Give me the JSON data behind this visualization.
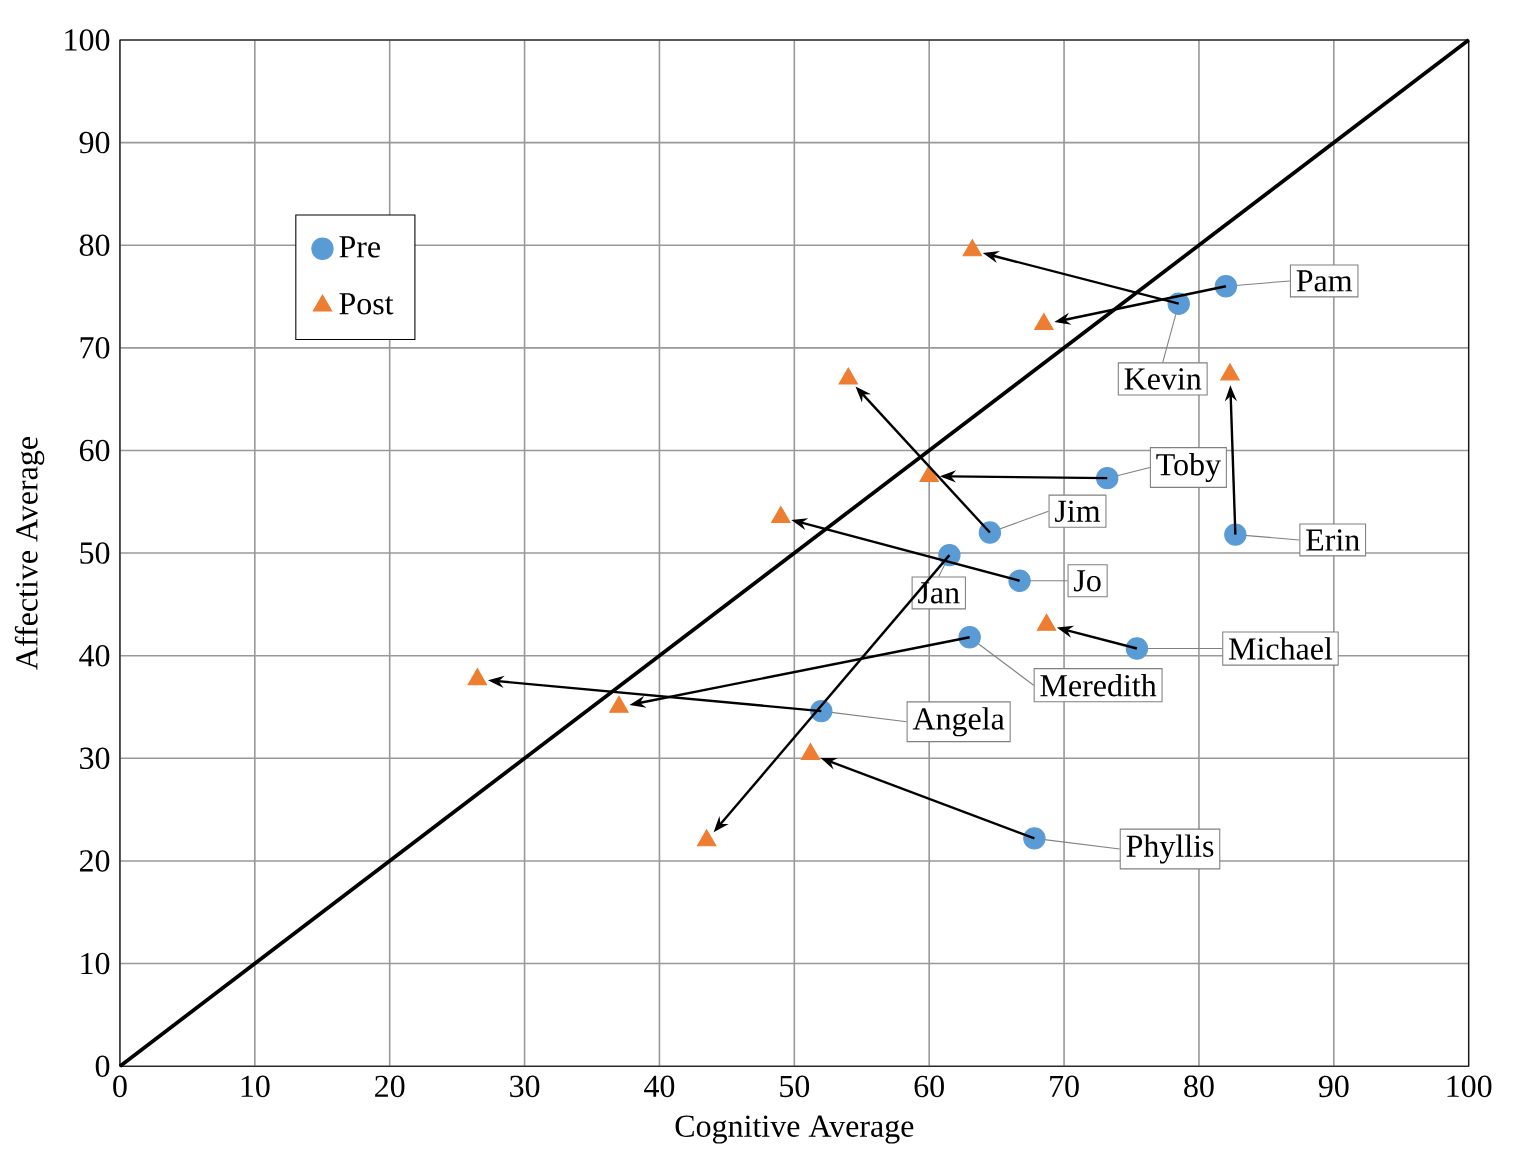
{
  "chart_data": {
    "type": "scatter",
    "xlabel": "Cognitive Average",
    "ylabel": "Affective Average",
    "xlim": [
      0,
      100
    ],
    "ylim": [
      0,
      100
    ],
    "xticks": [
      0,
      10,
      20,
      30,
      40,
      50,
      60,
      70,
      80,
      90,
      100
    ],
    "yticks": [
      0,
      10,
      20,
      30,
      40,
      50,
      60,
      70,
      80,
      90,
      100
    ],
    "grid": true,
    "legend": "top left",
    "series": [
      {
        "name": "Pre",
        "color": "#5b9bd5",
        "marker": "circle",
        "x": [
          82,
          78.5,
          73.2,
          64.5,
          82.7,
          61.5,
          66.7,
          63,
          75.4,
          52,
          67.8
        ],
        "values": [
          76,
          74.3,
          57.3,
          52,
          51.8,
          49.8,
          47.3,
          41.8,
          40.7,
          34.6,
          22.2
        ]
      },
      {
        "name": "Post",
        "color": "#ed7d31",
        "marker": "triangle",
        "x": [
          68.5,
          63.2,
          60,
          54,
          82.3,
          43.5,
          49,
          37,
          68.7,
          26.5,
          51.2
        ],
        "values": [
          72.3,
          79.5,
          57.5,
          67,
          67.4,
          22,
          53.5,
          35,
          43,
          37.7,
          30.4
        ]
      },
      {
        "type": "line",
        "color": "#000000",
        "marker": "none",
        "x": [
          0,
          100
        ],
        "values": [
          0,
          100
        ]
      }
    ],
    "annotations": [
      {
        "text": "Pam",
        "x": 82,
        "y": 76
      },
      {
        "text": "Kevin",
        "x": 78.5,
        "y": 74.3
      },
      {
        "text": "Toby",
        "x": 73.2,
        "y": 57.3
      },
      {
        "text": "Jim",
        "x": 64.5,
        "y": 52
      },
      {
        "text": "Erin",
        "x": 82.7,
        "y": 51.8
      },
      {
        "text": "Jan",
        "x": 61.5,
        "y": 49.8
      },
      {
        "text": "Jo",
        "x": 66.7,
        "y": 47.3
      },
      {
        "text": "Meredith",
        "x": 63,
        "y": 41.8
      },
      {
        "text": "Michael",
        "x": 75.4,
        "y": 40.7
      },
      {
        "text": "Angela",
        "x": 52,
        "y": 34.6
      },
      {
        "text": "Phyllis",
        "x": 67.8,
        "y": 22.2
      }
    ]
  }
}
